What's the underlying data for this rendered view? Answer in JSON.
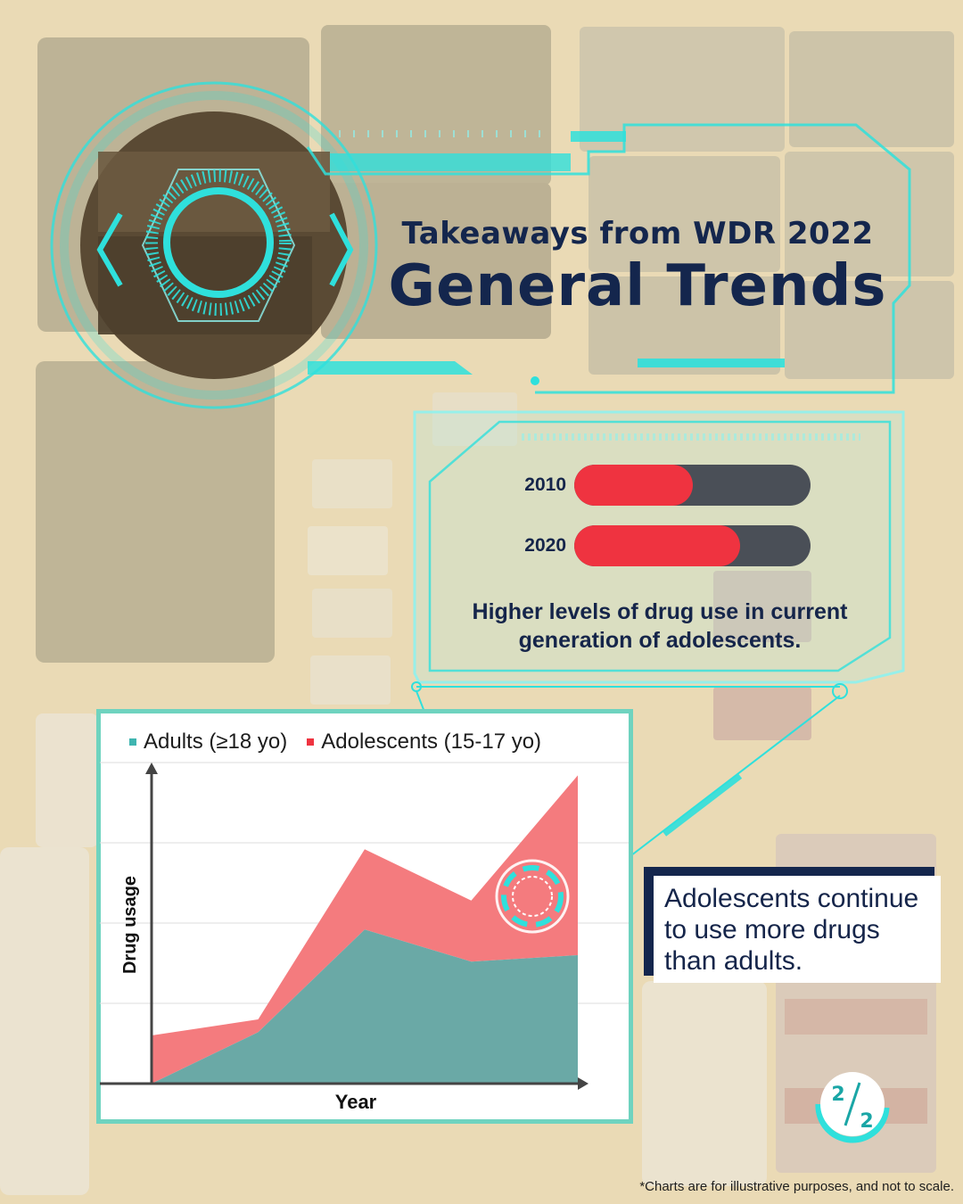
{
  "header": {
    "subtitle": "Takeaways from WDR 2022",
    "title": "General Trends"
  },
  "colors": {
    "accent": "#2fe0dc",
    "navy": "#14264d",
    "red": "#ef3340",
    "teal": "#6aa9a6",
    "salmon": "#f47b7e"
  },
  "comparison_card": {
    "bars": [
      {
        "year": "2010",
        "level": 0.5
      },
      {
        "year": "2020",
        "level": 0.7
      }
    ],
    "caption_line1": "Higher levels of drug use in current",
    "caption_line2": "generation of adolescents."
  },
  "chart_data": {
    "type": "area",
    "stacked": true,
    "xlabel": "Year",
    "ylabel": "Drug usage",
    "ylim": [
      0,
      100
    ],
    "x": [
      0,
      1,
      2,
      3,
      4
    ],
    "series": [
      {
        "name": "Adults (≥18 yo)",
        "color": "#6aa9a6",
        "values": [
          0,
          16,
          48,
          38,
          40
        ]
      },
      {
        "name": "Adolescents (15-17 yo)",
        "color": "#f47b7e",
        "values": [
          15,
          4,
          25,
          19,
          56
        ]
      }
    ],
    "grid": true,
    "legend": "top-left"
  },
  "callout": {
    "line1": "Adolescents continue",
    "line2": "to use more drugs",
    "line3": "than adults."
  },
  "pagination": {
    "current": "2",
    "total": "2"
  },
  "footnote": "*Charts are for illustrative purposes, and not to scale."
}
